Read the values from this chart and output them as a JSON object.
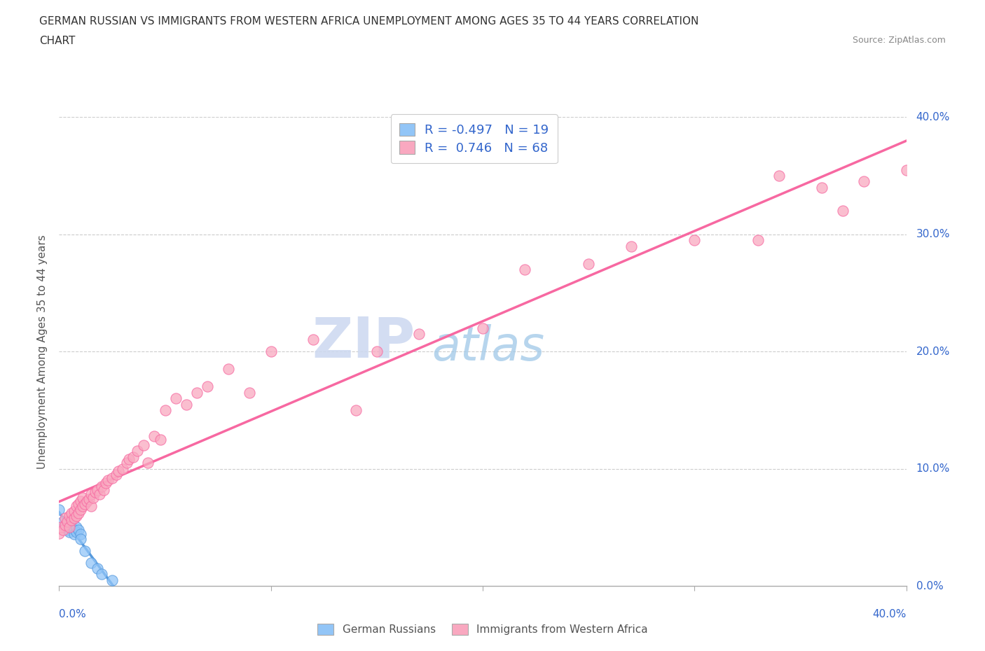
{
  "title_line1": "GERMAN RUSSIAN VS IMMIGRANTS FROM WESTERN AFRICA UNEMPLOYMENT AMONG AGES 35 TO 44 YEARS CORRELATION",
  "title_line2": "CHART",
  "source": "Source: ZipAtlas.com",
  "ylabel": "Unemployment Among Ages 35 to 44 years",
  "legend_label1": "German Russians",
  "legend_label2": "Immigrants from Western Africa",
  "R1": -0.497,
  "N1": 19,
  "R2": 0.746,
  "N2": 68,
  "color1": "#92C5F7",
  "color2": "#F9A8C0",
  "line1_color": "#5599dd",
  "line2_color": "#f768a1",
  "watermark_zip": "ZIP",
  "watermark_atlas": "atlas",
  "watermark_color_zip": "#c8d8f0",
  "watermark_color_atlas": "#c8d8e8",
  "xmin": 0.0,
  "xmax": 0.4,
  "ymin": 0.0,
  "ymax": 0.4,
  "german_russian_x": [
    0.0,
    0.002,
    0.003,
    0.004,
    0.005,
    0.005,
    0.006,
    0.007,
    0.007,
    0.008,
    0.008,
    0.009,
    0.01,
    0.01,
    0.012,
    0.015,
    0.018,
    0.02,
    0.025
  ],
  "german_russian_y": [
    0.065,
    0.055,
    0.05,
    0.048,
    0.046,
    0.052,
    0.05,
    0.048,
    0.044,
    0.046,
    0.05,
    0.048,
    0.044,
    0.04,
    0.03,
    0.02,
    0.015,
    0.01,
    0.005
  ],
  "western_africa_x": [
    0.0,
    0.001,
    0.002,
    0.003,
    0.003,
    0.004,
    0.005,
    0.005,
    0.006,
    0.006,
    0.007,
    0.007,
    0.008,
    0.008,
    0.009,
    0.009,
    0.01,
    0.01,
    0.011,
    0.011,
    0.012,
    0.013,
    0.014,
    0.015,
    0.015,
    0.016,
    0.017,
    0.018,
    0.019,
    0.02,
    0.021,
    0.022,
    0.023,
    0.025,
    0.027,
    0.028,
    0.03,
    0.032,
    0.033,
    0.035,
    0.037,
    0.04,
    0.042,
    0.045,
    0.048,
    0.05,
    0.055,
    0.06,
    0.065,
    0.07,
    0.08,
    0.09,
    0.1,
    0.12,
    0.14,
    0.15,
    0.17,
    0.2,
    0.22,
    0.25,
    0.27,
    0.3,
    0.33,
    0.34,
    0.36,
    0.37,
    0.38,
    0.4
  ],
  "western_africa_y": [
    0.045,
    0.05,
    0.048,
    0.052,
    0.058,
    0.055,
    0.05,
    0.06,
    0.056,
    0.062,
    0.058,
    0.064,
    0.06,
    0.068,
    0.062,
    0.07,
    0.065,
    0.072,
    0.068,
    0.075,
    0.07,
    0.072,
    0.074,
    0.068,
    0.078,
    0.075,
    0.08,
    0.082,
    0.078,
    0.085,
    0.082,
    0.088,
    0.09,
    0.092,
    0.095,
    0.098,
    0.1,
    0.105,
    0.108,
    0.11,
    0.115,
    0.12,
    0.105,
    0.128,
    0.125,
    0.15,
    0.16,
    0.155,
    0.165,
    0.17,
    0.185,
    0.165,
    0.2,
    0.21,
    0.15,
    0.2,
    0.215,
    0.22,
    0.27,
    0.275,
    0.29,
    0.295,
    0.295,
    0.35,
    0.34,
    0.32,
    0.345,
    0.355
  ]
}
